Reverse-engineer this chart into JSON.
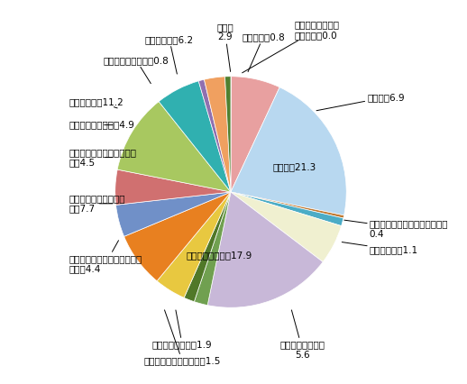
{
  "values": [
    0.0,
    6.9,
    21.3,
    0.4,
    1.1,
    5.6,
    17.9,
    1.9,
    1.5,
    4.4,
    7.7,
    4.5,
    4.9,
    11.2,
    6.2,
    0.8,
    2.9,
    0.8
  ],
  "colors": [
    "#3a5fa0",
    "#e8a0a0",
    "#b8d8f0",
    "#c07830",
    "#4bacc6",
    "#f0f0d0",
    "#c8b8d8",
    "#70a050",
    "#507828",
    "#e8c840",
    "#e88020",
    "#7090c8",
    "#d07070",
    "#a8c860",
    "#30b0b0",
    "#9070b0",
    "#f0a060",
    "#508030"
  ],
  "label_texts": [
    "鉱業，採石業，砂\n利採取業，0.0",
    "建設業，6.9",
    "製造業，21.3",
    "電気・ガス・熱供給・水道業，\n0.4",
    "情報通信業，1.1",
    "運輸業，郵便業，\n5.6",
    "卸売業，小売業，17.9",
    "金融業，保険業，1.9",
    "不動産業，物品賃貸業，1.5",
    "学術研究，専門・技術サービ\nス業，4.4",
    "宿泊業，飲食サービス\n業，7.7",
    "生活関連サービス業，娯楽\n業，4.5",
    "教育，学習支援業，4.9",
    "医療，福祉，11.2",
    "サービス業，6.2",
    "複合サービス事業，0.8",
    "公務，\n2.9",
    "農林漁業，0.8"
  ],
  "figsize": [
    5.18,
    4.26
  ],
  "dpi": 100
}
